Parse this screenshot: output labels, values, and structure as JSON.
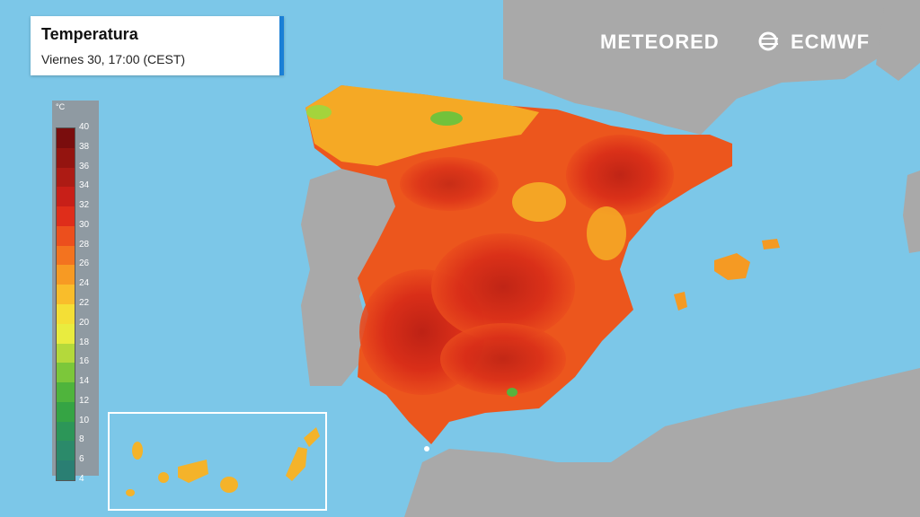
{
  "title": "Temperatura",
  "subtitle": "Viernes 30, 17:00 (CEST)",
  "legend": {
    "unit": "°C",
    "ticks": [
      "40",
      "38",
      "36",
      "34",
      "32",
      "30",
      "28",
      "26",
      "24",
      "22",
      "20",
      "18",
      "16",
      "14",
      "12",
      "10",
      "8",
      "6",
      "4"
    ],
    "colors": [
      "#7a0d0d",
      "#94140f",
      "#ad1b14",
      "#c81f18",
      "#df2d1a",
      "#ec4f1d",
      "#f3731f",
      "#f79a23",
      "#f9bd2b",
      "#f4df36",
      "#e9ec3f",
      "#b4d93b",
      "#7cc73a",
      "#4fb43c",
      "#35a444",
      "#2c9658",
      "#2b8a6a",
      "#2a7f73"
    ]
  },
  "brand": {
    "meteored": "METEORED",
    "ecmwf": "ECMWF"
  },
  "colors": {
    "sea": "#7cc7e8",
    "land_other": "#a9a9a9",
    "title_accent": "#1a7fd6"
  }
}
